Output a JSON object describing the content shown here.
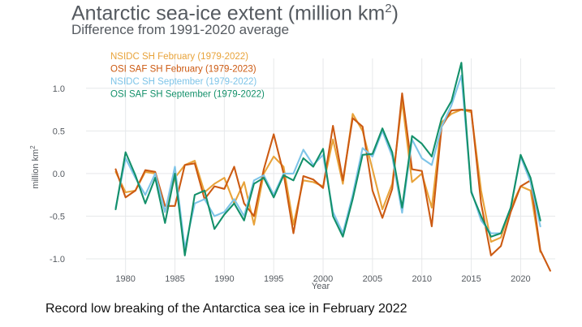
{
  "chart_data": {
    "type": "line",
    "title": "Antarctic sea-ice extent (million km",
    "title_superscript": "2",
    "title_suffix": ")",
    "subtitle": "Difference from 1991-2020 average",
    "xlabel": "Year",
    "ylabel": "million km",
    "ylabel_superscript": "2",
    "xlim": [
      1976,
      2023.5
    ],
    "ylim": [
      -1.2,
      1.35
    ],
    "xticks": [
      1980,
      1985,
      1990,
      1995,
      2000,
      2005,
      2010,
      2015,
      2020
    ],
    "yticks": [
      1.0,
      0.5,
      0.0,
      -0.5,
      -1.0
    ],
    "ytick_labels": [
      "1.0",
      "0.5",
      "0.0",
      "-0.5",
      "-1.0"
    ],
    "grid": true,
    "legend_position": "top-left",
    "series": [
      {
        "name": "NSIDC SH February (1979-2022)",
        "color": "#e8a33a",
        "x": [
          1979,
          1980,
          1981,
          1982,
          1983,
          1984,
          1985,
          1986,
          1987,
          1988,
          1989,
          1990,
          1991,
          1992,
          1993,
          1994,
          1995,
          1996,
          1997,
          1998,
          1999,
          2000,
          2001,
          2002,
          2003,
          2004,
          2005,
          2006,
          2007,
          2008,
          2009,
          2010,
          2011,
          2012,
          2013,
          2014,
          2015,
          2016,
          2017,
          2018,
          2019,
          2020,
          2021,
          2022
        ],
        "y": [
          0.02,
          -0.22,
          -0.2,
          0.02,
          0.0,
          -0.45,
          -0.05,
          0.1,
          0.15,
          -0.22,
          -0.12,
          -0.05,
          -0.35,
          -0.1,
          -0.6,
          0.0,
          0.2,
          0.08,
          -0.6,
          -0.08,
          -0.1,
          -0.15,
          0.4,
          -0.12,
          0.7,
          0.5,
          0.05,
          -0.42,
          -0.12,
          0.85,
          -0.1,
          0.0,
          -0.4,
          0.6,
          0.7,
          0.75,
          0.72,
          -0.2,
          -0.8,
          -0.75,
          -0.4,
          -0.15,
          -0.2,
          -0.92
        ]
      },
      {
        "name": "OSI SAF SH February (1979-2023)",
        "color": "#cc5a12",
        "x": [
          1979,
          1980,
          1981,
          1982,
          1983,
          1984,
          1985,
          1986,
          1987,
          1988,
          1989,
          1990,
          1991,
          1992,
          1993,
          1994,
          1995,
          1996,
          1997,
          1998,
          1999,
          2000,
          2001,
          2002,
          2003,
          2004,
          2005,
          2006,
          2007,
          2008,
          2009,
          2010,
          2011,
          2012,
          2013,
          2014,
          2015,
          2016,
          2017,
          2018,
          2019,
          2020,
          2021,
          2022,
          2023
        ],
        "y": [
          0.05,
          -0.28,
          -0.2,
          0.04,
          0.02,
          -0.38,
          -0.38,
          0.1,
          0.12,
          -0.3,
          -0.15,
          -0.18,
          0.08,
          -0.35,
          -0.5,
          0.05,
          0.46,
          0.0,
          -0.7,
          -0.03,
          -0.07,
          -0.17,
          0.56,
          -0.08,
          0.65,
          0.55,
          -0.2,
          -0.52,
          -0.18,
          0.94,
          0.05,
          0.03,
          -0.62,
          0.55,
          0.74,
          0.75,
          0.74,
          -0.35,
          -0.96,
          -0.85,
          -0.45,
          -0.15,
          -0.08,
          -0.9,
          -1.14
        ]
      },
      {
        "name": "NSIDC SH September (1979-2022)",
        "color": "#7ec4e8",
        "x": [
          1979,
          1980,
          1981,
          1982,
          1983,
          1984,
          1985,
          1986,
          1987,
          1988,
          1989,
          1990,
          1991,
          1992,
          1993,
          1994,
          1995,
          1996,
          1997,
          1998,
          1999,
          2000,
          2001,
          2002,
          2003,
          2004,
          2005,
          2006,
          2007,
          2008,
          2009,
          2010,
          2011,
          2012,
          2013,
          2014,
          2015,
          2016,
          2017,
          2018,
          2019,
          2020,
          2021,
          2022
        ],
        "y": [
          -0.4,
          0.18,
          -0.05,
          -0.25,
          0.0,
          -0.45,
          0.08,
          -0.88,
          -0.35,
          -0.3,
          -0.5,
          -0.45,
          -0.3,
          -0.5,
          -0.08,
          -0.02,
          -0.25,
          0.0,
          0.0,
          0.28,
          0.1,
          0.22,
          -0.45,
          -0.7,
          -0.25,
          0.3,
          0.2,
          0.5,
          0.2,
          -0.46,
          0.4,
          0.18,
          0.1,
          0.55,
          0.8,
          1.15,
          -0.2,
          -0.55,
          -0.7,
          -0.7,
          -0.4,
          0.2,
          -0.1,
          -0.62
        ]
      },
      {
        "name": "OSI SAF SH September (1979-2022)",
        "color": "#13906a",
        "x": [
          1979,
          1980,
          1981,
          1982,
          1983,
          1984,
          1985,
          1986,
          1987,
          1988,
          1989,
          1990,
          1991,
          1992,
          1993,
          1994,
          1995,
          1996,
          1997,
          1998,
          1999,
          2000,
          2001,
          2002,
          2003,
          2004,
          2005,
          2006,
          2007,
          2008,
          2009,
          2010,
          2011,
          2012,
          2013,
          2014,
          2015,
          2016,
          2017,
          2018,
          2019,
          2020,
          2021,
          2022
        ],
        "y": [
          -0.42,
          0.25,
          -0.02,
          -0.35,
          -0.05,
          -0.58,
          0.0,
          -0.96,
          -0.25,
          -0.2,
          -0.65,
          -0.48,
          -0.35,
          -0.55,
          -0.12,
          -0.05,
          -0.28,
          -0.02,
          -0.08,
          0.18,
          0.08,
          0.29,
          -0.5,
          -0.74,
          -0.3,
          0.22,
          0.23,
          0.53,
          0.25,
          -0.4,
          0.44,
          0.35,
          0.2,
          0.65,
          0.85,
          1.3,
          -0.22,
          -0.5,
          -0.74,
          -0.7,
          -0.4,
          0.22,
          -0.05,
          -0.55
        ]
      }
    ]
  },
  "caption": "Record low breaking of  the Antarctica sea ice in February 2022"
}
